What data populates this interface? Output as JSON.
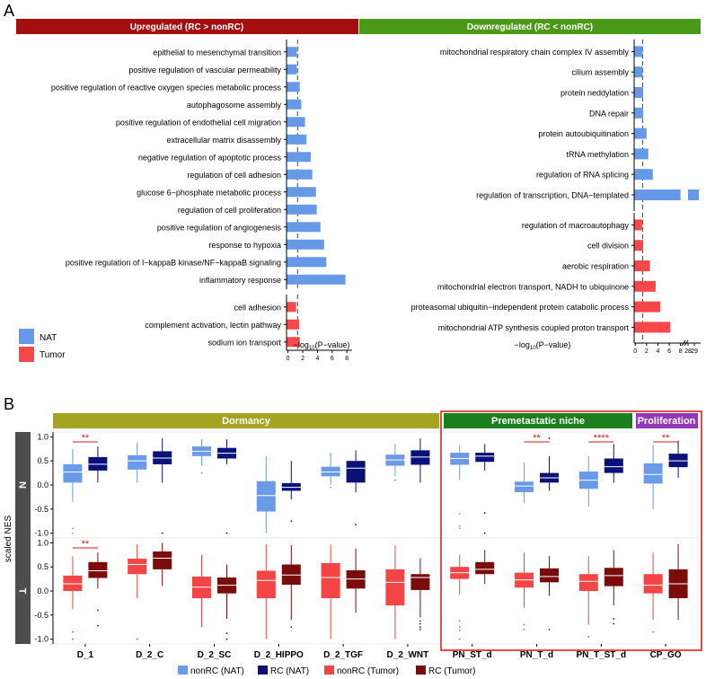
{
  "colors": {
    "up_strip": "#a40e0e",
    "down_strip": "#4a9a17",
    "dormancy_strip": "#a6a322",
    "premet_strip": "#19801d",
    "prolif_strip": "#9636b8",
    "nat_bar": "#6699e8",
    "tumor_bar": "#f4484a",
    "nonrc_nat": "#6a9ae8",
    "rc_nat": "#0a1178",
    "nonrc_tumor": "#f34446",
    "rc_tumor": "#7a0c0c",
    "row_strip": "#4d4d4d",
    "sig": "#d11a1a",
    "highlight_box": "#e02020"
  },
  "panel_a": {
    "label": "A",
    "up_strip": "Upregulated (RC > nonRC)",
    "down_strip": "Downregulated (RC < nonRC)",
    "xlabel_left": "−log",
    "xlabel_sub": "10",
    "xlabel_right": "(P−value)",
    "legend": [
      {
        "key": "nat",
        "name": "NAT"
      },
      {
        "key": "tumor",
        "name": "Tumor"
      }
    ]
  },
  "panel_b": {
    "label": "B",
    "ylabel": "scaled NES",
    "groups": [
      "Dormancy",
      "Premetastatic niche",
      "Proliferation"
    ],
    "rows": [
      "N",
      "T"
    ],
    "legend": [
      {
        "key": "nonrc_nat",
        "name": "nonRC (NAT)"
      },
      {
        "key": "rc_nat",
        "name": "RC (NAT)"
      },
      {
        "key": "nonrc_tumor",
        "name": "nonRC (Tumor)"
      },
      {
        "key": "rc_tumor",
        "name": "RC (Tumor)"
      }
    ]
  },
  "chart_data": [
    {
      "type": "bar",
      "orientation": "horizontal",
      "panel": "A-left",
      "xaxis": {
        "ticks": [
          0,
          2,
          4,
          6,
          8
        ],
        "xlim": [
          -0.2,
          8.6
        ]
      },
      "reference_line": 1.3,
      "blocks": [
        {
          "color": "nat",
          "categories": [
            "epithelial to mesenchymal transition",
            "positive regulation of vascular permeability",
            "positive regulation of reactive oxygen species metabolic process",
            "autophagosome assembly",
            "positive regulation of endothelial cell migration",
            "extracellular matrix disassembly",
            "negative regulation of apoptotic process",
            "regulation of cell adhesion",
            "glucose 6−phosphate metabolic process",
            "regulation of cell proliferation",
            "positive regulation of angiogenesis",
            "response to hypoxia",
            "positive regulation of I−kappaB kinase/NF−kappaB signaling",
            "inflammatory response"
          ],
          "values": [
            1.2,
            1.2,
            1.6,
            1.8,
            2.3,
            2.5,
            3.1,
            3.3,
            3.8,
            3.9,
            4.4,
            4.9,
            5.2,
            7.8
          ]
        },
        {
          "color": "tumor",
          "categories": [
            "cell adhesion",
            "complement activation, lectin pathway",
            "sodium ion transport"
          ],
          "values": [
            1.1,
            1.5,
            1.6
          ]
        }
      ]
    },
    {
      "type": "bar",
      "orientation": "horizontal",
      "panel": "A-right",
      "xaxis": {
        "ticks": [
          "0",
          "2",
          "4",
          "6",
          "8",
          "28",
          "29"
        ],
        "broken": true,
        "xlim": [
          -0.2,
          8.6
        ]
      },
      "reference_line": 1.3,
      "blocks": [
        {
          "color": "nat",
          "categories": [
            "mitochondrial respiratory chain complex IV assembly",
            "cilium assembly",
            "protein neddylation",
            "DNA repair",
            "protein autoubiquitination",
            "tRNA methylation",
            "regulation of RNA splicing",
            "regulation of transcription, DNA−templated"
          ],
          "values": [
            1.3,
            1.3,
            1.4,
            1.4,
            2.0,
            2.3,
            3.1,
            28.7
          ]
        },
        {
          "color": "tumor",
          "categories": [
            "regulation of macroautophagy",
            "cell division",
            "aerobic respiration",
            "mitochondrial electron transport, NADH to ubiquinone",
            "proteasomal ubiquitin−independent protein catabolic process",
            "mitochondrial ATP synthesis coupled proton transport"
          ],
          "values": [
            1.2,
            1.4,
            2.6,
            3.6,
            4.4,
            6.2
          ]
        }
      ]
    },
    {
      "type": "box",
      "panel": "B",
      "categories": [
        "D_1",
        "D_2_C",
        "D_2_SC",
        "D_2_HIPPO",
        "D_2_TGF",
        "D_2_WNT",
        "PN_ST_d",
        "PN_T_d",
        "PN_T_ST_d",
        "CP_GO"
      ],
      "category_groups": {
        "Dormancy": [
          0,
          5
        ],
        "Premetastatic niche": [
          6,
          8
        ],
        "Proliferation": [
          9,
          9
        ]
      },
      "yaxis": {
        "ticks": [
          "1.0",
          "0.5",
          "0.0",
          "-0.5",
          "-1.0"
        ],
        "ylim": [
          -1.1,
          1.1
        ]
      },
      "significance": [
        {
          "row": "N",
          "category": 0,
          "label": "**"
        },
        {
          "row": "N",
          "category": 7,
          "label": "**"
        },
        {
          "row": "N",
          "category": 8,
          "label": "****"
        },
        {
          "row": "N",
          "category": 9,
          "label": "**"
        },
        {
          "row": "T",
          "category": 0,
          "label": "**"
        }
      ],
      "rows": [
        {
          "row": "N",
          "series": [
            {
              "name": "nonRC (NAT)",
              "key": "nonrc_nat",
              "boxes": [
                {
                  "q1": 0.05,
                  "median": 0.27,
                  "q3": 0.43,
                  "low": -0.35,
                  "high": 0.75,
                  "outliers": [
                    -0.9,
                    -1.0
                  ]
                },
                {
                  "q1": 0.32,
                  "median": 0.5,
                  "q3": 0.62,
                  "low": 0.05,
                  "high": 0.88,
                  "outliers": []
                },
                {
                  "q1": 0.6,
                  "median": 0.7,
                  "q3": 0.8,
                  "low": 0.4,
                  "high": 0.95,
                  "outliers": [
                    0.25,
                    0.25
                  ]
                },
                {
                  "q1": -0.55,
                  "median": -0.22,
                  "q3": 0.08,
                  "low": -1.0,
                  "high": 0.6,
                  "outliers": []
                },
                {
                  "q1": 0.18,
                  "median": 0.27,
                  "q3": 0.38,
                  "low": 0.0,
                  "high": 0.65,
                  "outliers": [
                    -0.05,
                    0.65
                  ]
                },
                {
                  "q1": 0.4,
                  "median": 0.52,
                  "q3": 0.63,
                  "low": 0.18,
                  "high": 0.85,
                  "outliers": [
                    0.1
                  ]
                },
                {
                  "q1": 0.42,
                  "median": 0.55,
                  "q3": 0.67,
                  "low": 0.1,
                  "high": 0.83,
                  "outliers": [
                    -0.6,
                    -0.85,
                    -0.9
                  ]
                },
                {
                  "q1": -0.15,
                  "median": -0.02,
                  "q3": 0.07,
                  "low": -0.38,
                  "high": 0.47,
                  "outliers": []
                },
                {
                  "q1": -0.08,
                  "median": 0.1,
                  "q3": 0.28,
                  "low": -0.45,
                  "high": 0.6,
                  "outliers": []
                },
                {
                  "q1": 0.03,
                  "median": 0.22,
                  "q3": 0.45,
                  "low": -0.5,
                  "high": 0.83,
                  "outliers": []
                }
              ]
            },
            {
              "name": "RC (NAT)",
              "key": "rc_nat",
              "boxes": [
                {
                  "q1": 0.3,
                  "median": 0.43,
                  "q3": 0.58,
                  "low": 0.05,
                  "high": 0.8,
                  "outliers": []
                },
                {
                  "q1": 0.43,
                  "median": 0.56,
                  "q3": 0.7,
                  "low": 0.05,
                  "high": 0.97,
                  "outliers": [
                    -1.0
                  ]
                },
                {
                  "q1": 0.55,
                  "median": 0.66,
                  "q3": 0.77,
                  "low": 0.43,
                  "high": 0.95,
                  "outliers": [
                    -1.0
                  ]
                },
                {
                  "q1": -0.12,
                  "median": -0.05,
                  "q3": 0.04,
                  "low": -0.3,
                  "high": 0.5,
                  "outliers": [
                    -0.75
                  ]
                },
                {
                  "q1": 0.05,
                  "median": 0.35,
                  "q3": 0.5,
                  "low": -0.15,
                  "high": 0.72,
                  "outliers": [
                    -0.82
                  ]
                },
                {
                  "q1": 0.42,
                  "median": 0.58,
                  "q3": 0.72,
                  "low": 0.05,
                  "high": 0.97,
                  "outliers": []
                },
                {
                  "q1": 0.48,
                  "median": 0.6,
                  "q3": 0.67,
                  "low": 0.3,
                  "high": 0.85,
                  "outliers": [
                    -0.58,
                    -1.0
                  ]
                },
                {
                  "q1": 0.05,
                  "median": 0.15,
                  "q3": 0.25,
                  "low": -0.12,
                  "high": 0.6,
                  "outliers": [
                    0.97
                  ]
                },
                {
                  "q1": 0.25,
                  "median": 0.38,
                  "q3": 0.55,
                  "low": 0.05,
                  "high": 0.85,
                  "outliers": []
                },
                {
                  "q1": 0.37,
                  "median": 0.5,
                  "q3": 0.65,
                  "low": 0.15,
                  "high": 0.92,
                  "outliers": []
                }
              ]
            }
          ]
        },
        {
          "row": "T",
          "series": [
            {
              "name": "nonRC (Tumor)",
              "key": "nonrc_tumor",
              "boxes": [
                {
                  "q1": 0.0,
                  "median": 0.15,
                  "q3": 0.32,
                  "low": -0.38,
                  "high": 0.72,
                  "outliers": [
                    -0.85,
                    -1.0
                  ]
                },
                {
                  "q1": 0.35,
                  "median": 0.55,
                  "q3": 0.67,
                  "low": -0.15,
                  "high": 0.97,
                  "outliers": [
                    -1.0
                  ]
                },
                {
                  "q1": -0.15,
                  "median": 0.08,
                  "q3": 0.3,
                  "low": -0.75,
                  "high": 0.75,
                  "outliers": []
                },
                {
                  "q1": -0.15,
                  "median": 0.22,
                  "q3": 0.42,
                  "low": -1.0,
                  "high": 0.97,
                  "outliers": []
                },
                {
                  "q1": -0.15,
                  "median": 0.28,
                  "q3": 0.58,
                  "low": -1.0,
                  "high": 0.97,
                  "outliers": []
                },
                {
                  "q1": -0.3,
                  "median": 0.18,
                  "q3": 0.45,
                  "low": -1.0,
                  "high": 0.95,
                  "outliers": []
                },
                {
                  "q1": 0.25,
                  "median": 0.38,
                  "q3": 0.5,
                  "low": -0.08,
                  "high": 0.75,
                  "outliers": [
                    -0.62,
                    -0.75,
                    -0.82,
                    -1.0
                  ]
                },
                {
                  "q1": 0.07,
                  "median": 0.23,
                  "q3": 0.38,
                  "low": -0.35,
                  "high": 0.8,
                  "outliers": [
                    -0.7,
                    -0.8
                  ]
                },
                {
                  "q1": 0.0,
                  "median": 0.2,
                  "q3": 0.35,
                  "low": -0.7,
                  "high": 0.72,
                  "outliers": [
                    -0.95
                  ]
                },
                {
                  "q1": -0.05,
                  "median": 0.12,
                  "q3": 0.35,
                  "low": -0.6,
                  "high": 0.8,
                  "outliers": [
                    -0.85
                  ]
                }
              ]
            },
            {
              "name": "RC (Tumor)",
              "key": "rc_tumor",
              "boxes": [
                {
                  "q1": 0.27,
                  "median": 0.42,
                  "q3": 0.6,
                  "low": 0.05,
                  "high": 0.8,
                  "outliers": [
                    -0.4,
                    -0.72
                  ]
                },
                {
                  "q1": 0.45,
                  "median": 0.68,
                  "q3": 0.82,
                  "low": 0.1,
                  "high": 1.0,
                  "outliers": []
                },
                {
                  "q1": -0.05,
                  "median": 0.12,
                  "q3": 0.28,
                  "low": -0.58,
                  "high": 0.55,
                  "outliers": [
                    -0.88,
                    -1.0
                  ]
                },
                {
                  "q1": 0.13,
                  "median": 0.33,
                  "q3": 0.55,
                  "low": -0.6,
                  "high": 0.95,
                  "outliers": [
                    -0.75
                  ]
                },
                {
                  "q1": 0.05,
                  "median": 0.25,
                  "q3": 0.43,
                  "low": -0.45,
                  "high": 0.88,
                  "outliers": []
                },
                {
                  "q1": 0.02,
                  "median": 0.28,
                  "q3": 0.35,
                  "low": -0.55,
                  "high": 0.68,
                  "outliers": [
                    -0.62,
                    -0.68,
                    -0.75,
                    -0.8
                  ]
                },
                {
                  "q1": 0.35,
                  "median": 0.45,
                  "q3": 0.6,
                  "low": 0.15,
                  "high": 0.85,
                  "outliers": []
                },
                {
                  "q1": 0.18,
                  "median": 0.3,
                  "q3": 0.47,
                  "low": -0.1,
                  "high": 0.72,
                  "outliers": [
                    -0.8
                  ]
                },
                {
                  "q1": 0.1,
                  "median": 0.32,
                  "q3": 0.48,
                  "low": -0.3,
                  "high": 0.85,
                  "outliers": [
                    -0.58,
                    -0.68
                  ]
                },
                {
                  "q1": -0.15,
                  "median": 0.15,
                  "q3": 0.45,
                  "low": -0.6,
                  "high": 0.97,
                  "outliers": []
                }
              ]
            }
          ]
        }
      ]
    }
  ]
}
